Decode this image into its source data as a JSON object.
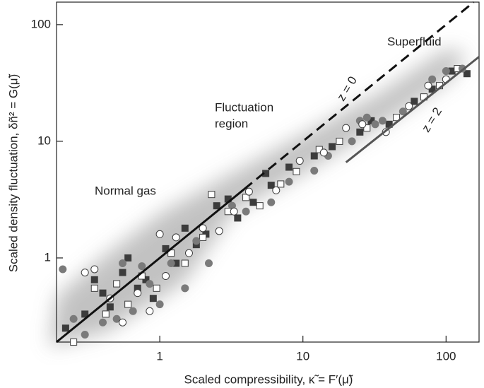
{
  "chart_data": {
    "type": "scatter",
    "xlabel": "Scaled compressibility, κ̃ = F′(μ̃)",
    "ylabel": "Scaled density fluctuation, δñ² = G(μ̃)",
    "xlog": true,
    "ylog": true,
    "xlim": [
      0.19,
      170
    ],
    "ylim": [
      0.19,
      156
    ],
    "xticks": [
      1,
      10,
      100
    ],
    "yticks": [
      1,
      10,
      100
    ],
    "annotations": [
      "Superfluid",
      "Fluctuation",
      "region",
      "Normal gas",
      "z = 0",
      "z = 2"
    ],
    "lines": [
      {
        "color": "#111111",
        "dashed": false,
        "x": [
          0.19,
          3.9
        ],
        "values": [
          0.19,
          3.9
        ]
      },
      {
        "color": "#111111",
        "dashed": true,
        "x": [
          3.9,
          156
        ],
        "values": [
          3.9,
          156
        ]
      },
      {
        "color": "#555555",
        "dashed": false,
        "x": [
          20,
          170
        ],
        "values": [
          6.6,
          53
        ]
      }
    ],
    "series": [
      {
        "marker": "square",
        "color": "#3c3c3c",
        "filled": true,
        "x": [
          0.22,
          0.3,
          0.35,
          0.4,
          0.45,
          0.55,
          0.6,
          0.7,
          0.8,
          0.9,
          1.1,
          1.3,
          1.5,
          1.8,
          2.1,
          2.5,
          3.0,
          3.5,
          4.5,
          5.5,
          6,
          8,
          12,
          16,
          25,
          30,
          40,
          60,
          80,
          110,
          140
        ],
        "values": [
          0.25,
          0.33,
          0.65,
          0.5,
          0.38,
          0.75,
          1.0,
          0.55,
          0.65,
          0.45,
          1.2,
          0.9,
          1.8,
          1.3,
          1.6,
          2.8,
          3.2,
          2.2,
          3.0,
          5.3,
          4.2,
          6,
          7.5,
          9,
          12,
          15,
          14,
          22,
          28,
          40,
          38
        ]
      },
      {
        "marker": "square",
        "color": "#3c3c3c",
        "filled": false,
        "x": [
          0.25,
          0.35,
          0.42,
          0.5,
          0.6,
          0.75,
          0.95,
          1.2,
          1.5,
          2,
          2.3,
          3,
          4,
          5,
          7,
          9,
          13,
          18,
          28,
          45,
          70,
          90,
          120
        ],
        "values": [
          0.19,
          0.55,
          0.33,
          0.6,
          0.4,
          0.7,
          0.55,
          1.1,
          0.9,
          1.5,
          3.5,
          2.5,
          3.3,
          2.8,
          4.3,
          5.5,
          8.5,
          10,
          13,
          16,
          24,
          30,
          42
        ]
      },
      {
        "marker": "circle",
        "color": "#7a7a7a",
        "filled": true,
        "x": [
          0.21,
          0.25,
          0.3,
          0.4,
          0.5,
          0.55,
          0.65,
          0.75,
          0.85,
          1.0,
          1.2,
          1.5,
          1.8,
          2.2,
          3.2,
          4,
          6,
          8,
          12,
          15,
          22,
          25,
          28,
          32,
          36,
          50,
          80,
          100,
          130
        ],
        "values": [
          0.8,
          0.3,
          0.22,
          0.28,
          0.3,
          0.9,
          0.35,
          0.85,
          0.6,
          0.4,
          0.9,
          0.55,
          1.4,
          0.9,
          2.8,
          2.5,
          3.0,
          4.5,
          5.6,
          7.5,
          10,
          15,
          16,
          14,
          15,
          18,
          34,
          40,
          42
        ]
      },
      {
        "marker": "circle",
        "color": "#3c3c3c",
        "filled": false,
        "x": [
          0.3,
          0.35,
          0.45,
          0.55,
          0.7,
          0.85,
          1.0,
          1.1,
          1.3,
          1.6,
          2.0,
          2.6,
          3.3,
          4.2,
          6.5,
          9.5,
          14,
          20,
          26,
          38,
          55,
          75,
          100
        ],
        "values": [
          0.75,
          0.8,
          0.45,
          0.28,
          0.5,
          0.35,
          1.6,
          0.7,
          1.5,
          1.1,
          1.8,
          1.7,
          2.5,
          3.7,
          3.8,
          6.8,
          8,
          13,
          14,
          12,
          20,
          30,
          34
        ]
      }
    ]
  }
}
